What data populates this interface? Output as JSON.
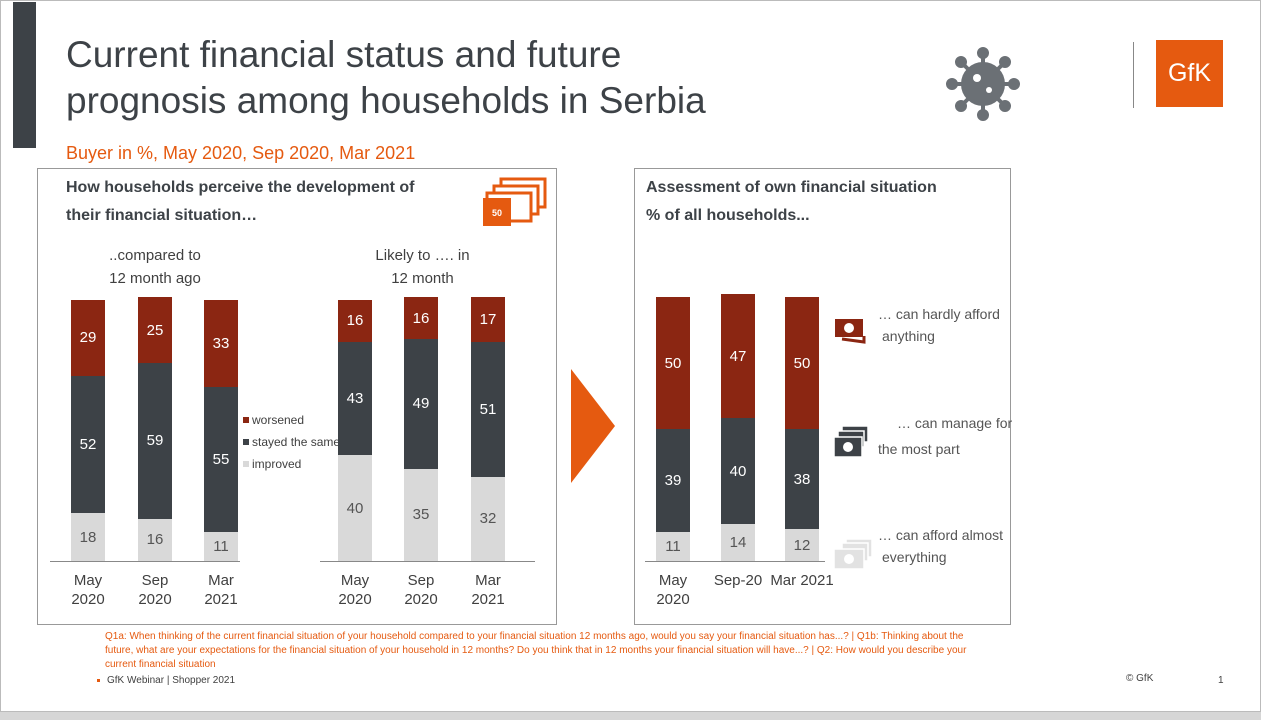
{
  "title": "Current financial status and future prognosis among households in Serbia",
  "title_line1": "Current financial status and future",
  "title_line2": "prognosis among households in Serbia",
  "subtitle": "Buyer in %, May 2020, Sep 2020, Mar 2021",
  "logo": "GfK",
  "colors": {
    "worsened": "#8b2612",
    "stayed": "#3d4247",
    "improved": "#d9d9d9",
    "accent": "#e55a10"
  },
  "left_panel": {
    "title1": "How households perceive the development of",
    "title2": "their financial situation…",
    "icon_label": "50",
    "group1_line1": "..compared to",
    "group1_line2": "12 month ago",
    "group2_line1": "Likely to …. in",
    "group2_line2": "12 month"
  },
  "right_panel": {
    "title1": "Assessment of own financial situation",
    "title2": "% of all households...",
    "labels": [
      {
        "l1": "… can hardly afford",
        "l2": "anything"
      },
      {
        "l1": "… can manage for",
        "l2": "the most part"
      },
      {
        "l1": "… can afford almost",
        "l2": "everything"
      }
    ]
  },
  "chart_data": [
    {
      "type": "bar",
      "stacked": true,
      "title": "..compared to 12 month ago",
      "categories": [
        "May\n2020",
        "Sep\n2020",
        "Mar\n2021"
      ],
      "series": [
        {
          "name": "improved",
          "values": [
            18,
            16,
            11
          ]
        },
        {
          "name": "stayed the same",
          "values": [
            52,
            59,
            55
          ]
        },
        {
          "name": "worsened",
          "values": [
            29,
            25,
            33
          ]
        }
      ],
      "legend": [
        "worsened",
        "stayed the same",
        "improved"
      ],
      "ylim": [
        0,
        100
      ]
    },
    {
      "type": "bar",
      "stacked": true,
      "title": "Likely to …. in 12 month",
      "categories": [
        "May\n2020",
        "Sep\n2020",
        "Mar\n2021"
      ],
      "series": [
        {
          "name": "improved",
          "values": [
            40,
            35,
            32
          ]
        },
        {
          "name": "stayed the same",
          "values": [
            43,
            49,
            51
          ]
        },
        {
          "name": "worsened",
          "values": [
            16,
            16,
            17
          ]
        }
      ],
      "ylim": [
        0,
        100
      ]
    },
    {
      "type": "bar",
      "stacked": true,
      "title": "Assessment of own financial situation",
      "categories": [
        "May\n2020",
        "Sep-20",
        "Mar 2021"
      ],
      "series": [
        {
          "name": "can afford almost everything",
          "values": [
            11,
            14,
            12
          ]
        },
        {
          "name": "can manage for the most part",
          "values": [
            39,
            40,
            38
          ]
        },
        {
          "name": "can hardly afford anything",
          "values": [
            50,
            47,
            50
          ]
        }
      ],
      "ylim": [
        0,
        100
      ]
    }
  ],
  "footer": {
    "notes": "Q1a: When thinking of the current financial situation of your household compared to your financial situation 12 months ago, would you say your financial situation has...? | Q1b: Thinking about the future, what are your expectations for the financial situation of your household in 12 months? Do you think that in 12 months your financial situation will have...? | Q2: How would you describe your current financial situation",
    "source": "GfK Webinar | Shopper 2021",
    "copyright": "© GfK",
    "page": "1"
  }
}
